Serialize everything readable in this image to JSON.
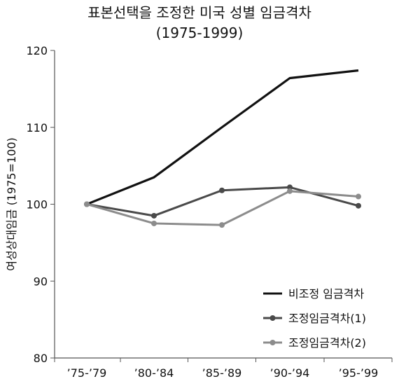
{
  "chart_data": {
    "type": "line",
    "title_lines": [
      "표본선택을 조정한 미국 성별 임금격차",
      "(1975-1999)"
    ],
    "xlabel": "",
    "ylabel": "여성상대임금 (1975=100)",
    "categories": [
      "’75-’79",
      "’80-’84",
      "’85-’89",
      "’90-’94",
      "’95-’99"
    ],
    "ylim": [
      80,
      120
    ],
    "yticks": [
      80,
      90,
      100,
      110,
      120
    ],
    "grid": false,
    "legend_position": "bottom-right",
    "series": [
      {
        "name": "비조정 임금격차",
        "values": [
          100,
          103.5,
          110,
          116.4,
          117.4
        ],
        "color": "#111111",
        "marker": false
      },
      {
        "name": "조정임금격차(1)",
        "values": [
          100,
          98.5,
          101.8,
          102.2,
          99.8
        ],
        "color": "#4a4a4a",
        "marker": true
      },
      {
        "name": "조정임금격차(2)",
        "values": [
          100,
          97.5,
          97.3,
          101.7,
          101
        ],
        "color": "#8c8c8c",
        "marker": true
      }
    ]
  }
}
